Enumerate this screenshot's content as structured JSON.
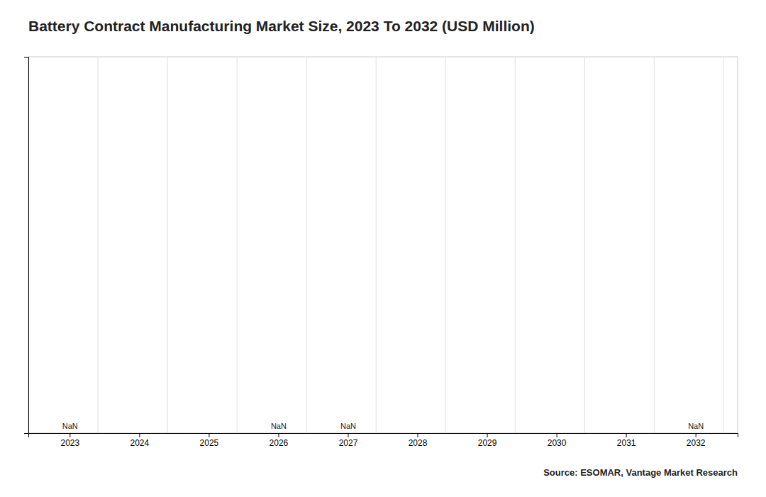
{
  "chart_data": {
    "type": "bar",
    "title": "Battery Contract Manufacturing Market Size, 2023 To 2032 (USD Million)",
    "categories": [
      "2023",
      "2024",
      "2025",
      "2026",
      "2027",
      "2028",
      "2029",
      "2030",
      "2031",
      "2032"
    ],
    "values": [
      null,
      null,
      null,
      null,
      null,
      null,
      null,
      null,
      null,
      null
    ],
    "value_labels": [
      "NaN",
      null,
      null,
      "NaN",
      "NaN",
      null,
      null,
      null,
      null,
      "NaN"
    ],
    "data_labels": true,
    "ylim": [
      0,
      1
    ],
    "yticks": [],
    "tick_labels": "x",
    "grid": true,
    "source": "Source: ESOMAR, Vantage Market Research"
  }
}
